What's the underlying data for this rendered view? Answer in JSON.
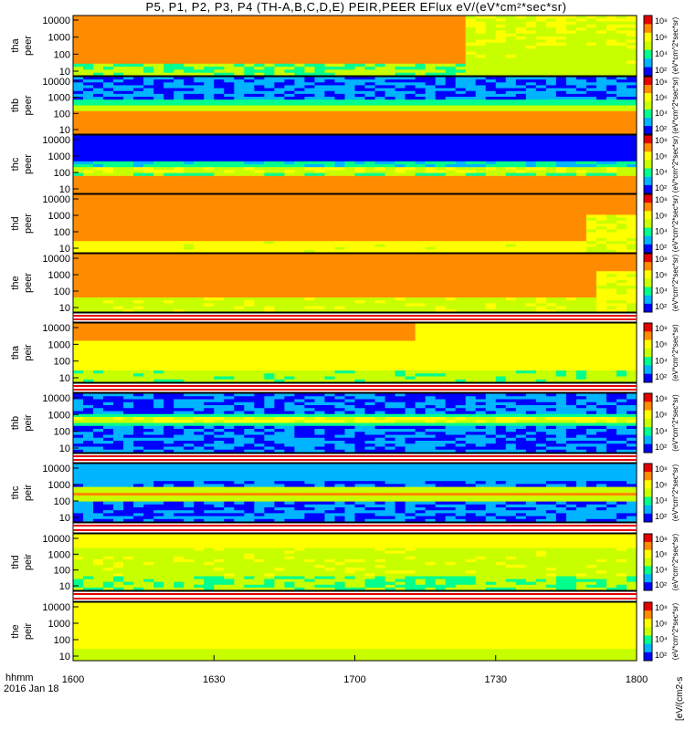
{
  "title": "P5, P1, P2, P3, P4 (TH-A,B,C,D,E) PEIR,PEER EFlux eV/(eV*cm²*sec*sr)",
  "colorbar_label": "[eV/(cm2-s",
  "chart_data": {
    "type": "heatmap",
    "colorscale": [
      "#0000ff",
      "#00b4ff",
      "#00ff8c",
      "#c8ff00",
      "#ffff00",
      "#ff8c00",
      "#e60000"
    ],
    "x_axis": {
      "ticks": [
        "1600",
        "1630",
        "1700",
        "1730",
        "1800"
      ],
      "tick_values_hhmm": [
        1600,
        1630,
        1700,
        1730,
        1800
      ],
      "label_left_top": "hhmm",
      "label_left_bottom": "2016 Jan 18"
    },
    "panels": [
      {
        "label1": "tha",
        "label2": "peer",
        "yticks": [
          "10000",
          "1000",
          "100",
          "10"
        ],
        "cbticks": [
          "10⁸",
          "10⁶",
          "10⁴",
          "10²"
        ],
        "cbtitle": "(eV*cm^2*sec*sr)",
        "pattern": "tha_peer"
      },
      {
        "label1": "thb",
        "label2": "peer",
        "yticks": [
          "10000",
          "1000",
          "100",
          "10"
        ],
        "cbticks": [
          "10⁸",
          "10⁶",
          "10⁴",
          "10²"
        ],
        "cbtitle": "(eV*cm^2*sec*sr)",
        "pattern": "thb_peer"
      },
      {
        "label1": "thc",
        "label2": "peer",
        "yticks": [
          "10000",
          "1000",
          "100",
          "10"
        ],
        "cbticks": [
          "10⁸",
          "10⁶",
          "10⁴",
          "10²"
        ],
        "cbtitle": "(eV*cm^2*sec*sr)",
        "pattern": "thc_peer"
      },
      {
        "label1": "thd",
        "label2": "peer",
        "yticks": [
          "10000",
          "1000",
          "100",
          "10"
        ],
        "cbticks": [
          "10⁸",
          "10⁶",
          "10⁴",
          "10²"
        ],
        "cbtitle": "(eV*cm^2*sec*sr)",
        "pattern": "thd_peer"
      },
      {
        "label1": "the",
        "label2": "peer",
        "yticks": [
          "10000",
          "1000",
          "100",
          "10"
        ],
        "cbticks": [
          "10⁸",
          "10⁶",
          "10⁴",
          "10²"
        ],
        "cbtitle": "(eV*cm^2*sec*sr)",
        "pattern": "the_peer"
      },
      {
        "label1": "tha",
        "label2": "peir",
        "yticks": [
          "10000",
          "1000",
          "100",
          "10"
        ],
        "cbticks": [
          "10⁸",
          "10⁶",
          "10⁴",
          "10²"
        ],
        "cbtitle": "(eV*cm^2*sec*sr)",
        "pattern": "tha_peir"
      },
      {
        "label1": "thb",
        "label2": "peir",
        "yticks": [
          "10000",
          "1000",
          "100",
          "10"
        ],
        "cbticks": [
          "10⁸",
          "10⁶",
          "10⁴",
          "10²"
        ],
        "cbtitle": "(eV*cm^2*sec*sr)",
        "pattern": "thb_peir"
      },
      {
        "label1": "thc",
        "label2": "peir",
        "yticks": [
          "10000",
          "1000",
          "100",
          "10"
        ],
        "cbticks": [
          "10⁸",
          "10⁶",
          "10⁴",
          "10²"
        ],
        "cbtitle": "(eV*cm^2*sec*sr)",
        "pattern": "thc_peir"
      },
      {
        "label1": "thd",
        "label2": "peir",
        "yticks": [
          "10000",
          "1000",
          "100",
          "10"
        ],
        "cbticks": [
          "10⁸",
          "10⁶",
          "10⁴",
          "10²"
        ],
        "cbtitle": "(eV*cm^2*sec*sr)",
        "pattern": "thd_peir"
      },
      {
        "label1": "the",
        "label2": "peir",
        "yticks": [
          "10000",
          "1000",
          "100",
          "10"
        ],
        "cbticks": [
          "10⁸",
          "10⁶",
          "10⁴",
          "10²"
        ],
        "cbtitle": "(eV*cm^2*sec*sr)",
        "pattern": "the_peir"
      }
    ]
  }
}
